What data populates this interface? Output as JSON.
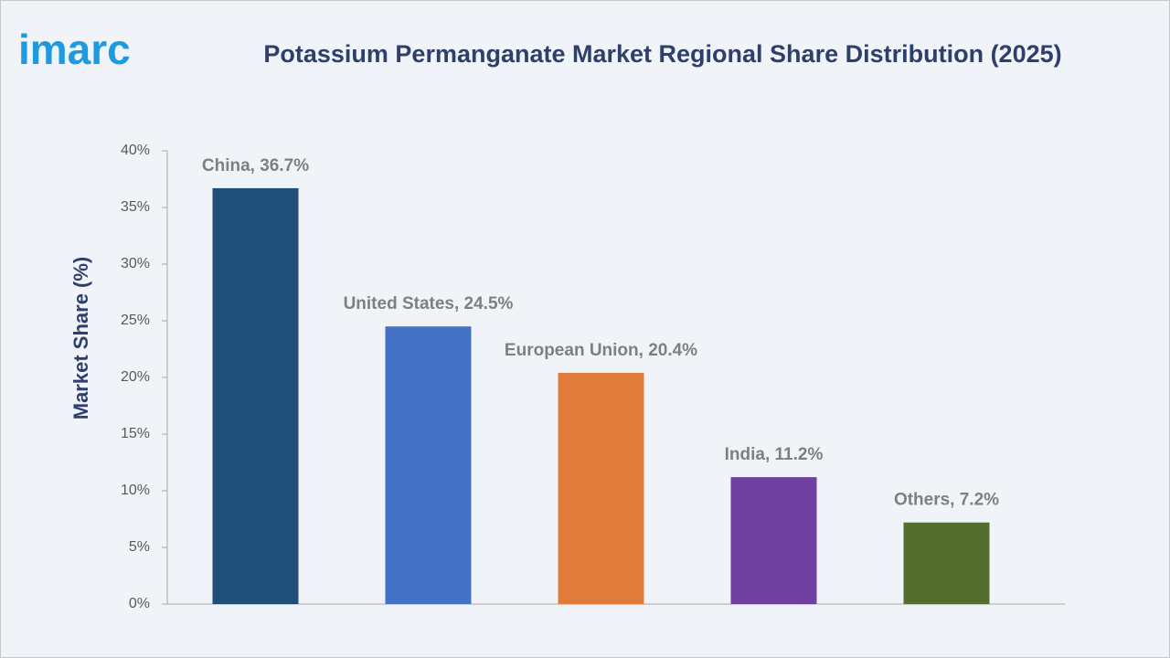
{
  "logo": "imarc",
  "chart_data": {
    "type": "bar",
    "title": "Potassium Permanganate Market Regional Share Distribution (2025)",
    "y_label": "Market Share (%)",
    "values": [
      36.7,
      24.5,
      20.4,
      11.2,
      7.2
    ],
    "value_labels": [
      "China, 36.7%",
      "United States, 24.5%",
      "European Union, 20.4%",
      "India, 11.2%",
      "Others, 7.2%"
    ],
    "colors": [
      "#1f4e79",
      "#4472c4",
      "#e07b39",
      "#7040a0",
      "#546e2f"
    ],
    "ylim": [
      0,
      40
    ],
    "yticks": [
      {
        "value": 0,
        "label": "0%"
      },
      {
        "value": 5,
        "label": "5%"
      },
      {
        "value": 10,
        "label": "10%"
      },
      {
        "value": 15,
        "label": "15%"
      },
      {
        "value": 20,
        "label": "20%"
      },
      {
        "value": 25,
        "label": "25%"
      },
      {
        "value": 30,
        "label": "30%"
      },
      {
        "value": 35,
        "label": "35%"
      },
      {
        "value": 40,
        "label": "40%"
      }
    ],
    "grid": false
  }
}
